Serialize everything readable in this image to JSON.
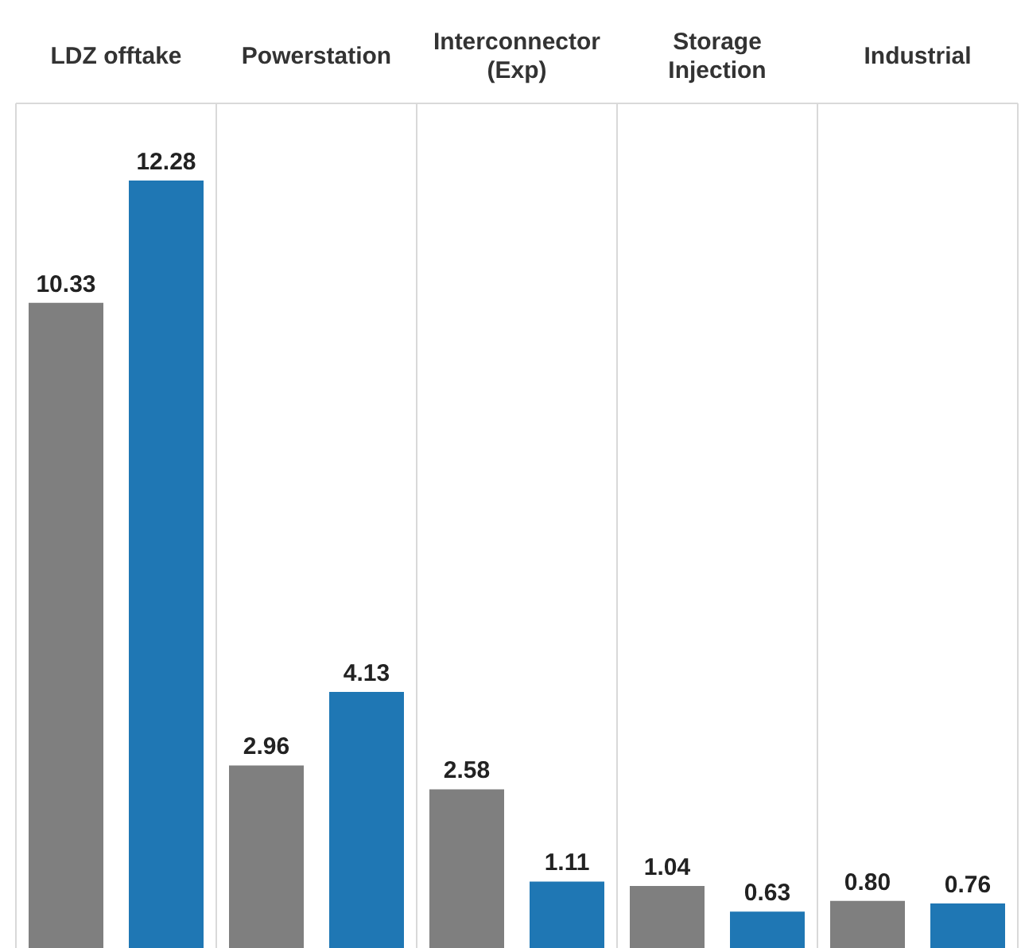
{
  "chart_data": {
    "type": "bar",
    "categories": [
      "LDZ offtake",
      "Powerstation",
      "Interconnector (Exp)",
      "Storage Injection",
      "Industrial"
    ],
    "series": [
      {
        "color": "#7f7f7f",
        "values": [
          10.33,
          2.96,
          2.58,
          1.04,
          0.8
        ],
        "value_labels": [
          "10.33",
          "2.96",
          "2.58",
          "1.04",
          "0.80"
        ]
      },
      {
        "color": "#1f77b4",
        "values": [
          12.28,
          4.13,
          1.11,
          0.63,
          0.76
        ],
        "value_labels": [
          "12.28",
          "4.13",
          "1.11",
          "0.63",
          "0.76"
        ]
      }
    ],
    "grid": "x",
    "legend": false
  }
}
